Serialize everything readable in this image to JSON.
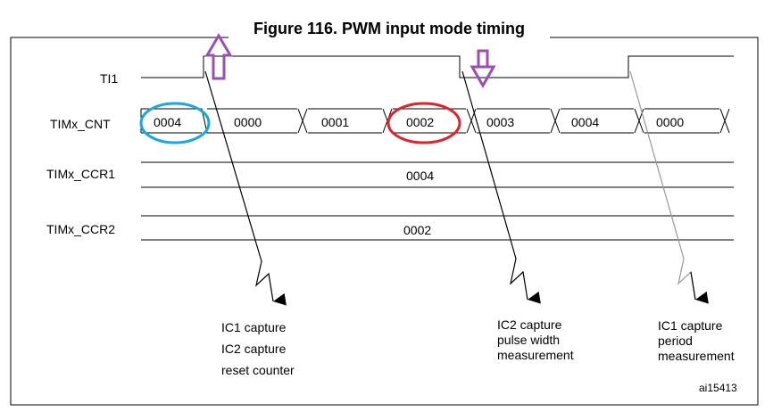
{
  "title": "Figure 116. PWM input mode timing",
  "signals": {
    "ti1": "TI1",
    "cnt": "TIMx_CNT",
    "ccr1": "TIMx_CCR1",
    "ccr2": "TIMx_CCR2"
  },
  "cnt_values": [
    "0004",
    "0000",
    "0001",
    "0002",
    "0003",
    "0004",
    "0000"
  ],
  "ccr1_value": "0004",
  "ccr2_value": "0002",
  "annotations": {
    "a1": [
      "IC1 capture",
      "IC2 capture",
      "reset counter"
    ],
    "a2": [
      "IC2 capture",
      "pulse width",
      "measurement"
    ],
    "a3": [
      "IC1 capture",
      "period",
      "measurement"
    ]
  },
  "figure_id": "ai15413",
  "colors": {
    "arrow": "#9b4fb3",
    "circle_first": "#1aa7e0",
    "circle_second": "#e0232a",
    "line": "#000000"
  }
}
